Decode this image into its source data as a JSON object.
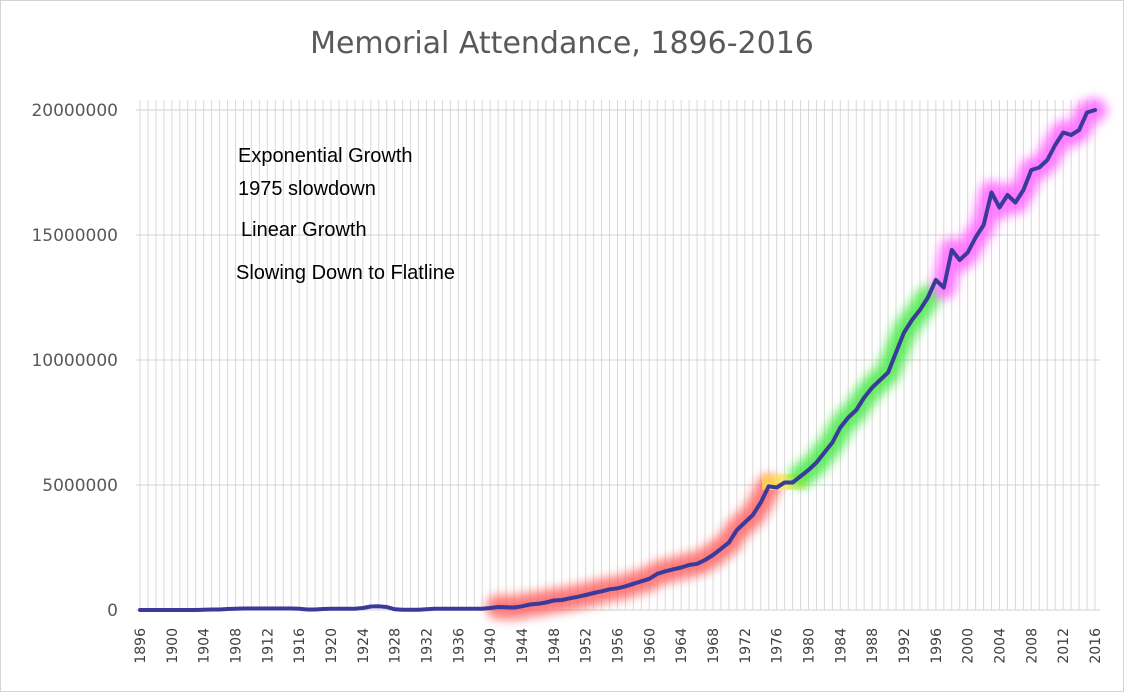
{
  "chart_data": {
    "type": "line",
    "title": "Memorial Attendance, 1896-2016",
    "xlabel": "",
    "ylabel": "",
    "xlim": [
      1896,
      2016
    ],
    "ylim": [
      0,
      20000000
    ],
    "y_ticks": [
      "0",
      "5000000",
      "10000000",
      "15000000",
      "20000000"
    ],
    "x_tick_labels": [
      "1896",
      "1900",
      "1904",
      "1908",
      "1912",
      "1916",
      "1920",
      "1924",
      "1928",
      "1932",
      "1936",
      "1940",
      "1944",
      "1948",
      "1952",
      "1956",
      "1960",
      "1964",
      "1968",
      "1972",
      "1976",
      "1980",
      "1984",
      "1988",
      "1992",
      "1996",
      "2000",
      "2004",
      "2008",
      "2012",
      "2016"
    ],
    "grid": true,
    "line_color": "#3a3a9a",
    "series": [
      {
        "x": [
          1896,
          1897,
          1898,
          1899,
          1900,
          1901,
          1902,
          1903,
          1904,
          1905,
          1906,
          1907,
          1908,
          1909,
          1910,
          1911,
          1912,
          1913,
          1914,
          1915,
          1916,
          1917,
          1918,
          1919,
          1920,
          1921,
          1922,
          1923,
          1924,
          1925,
          1926,
          1927,
          1928,
          1929,
          1930,
          1931,
          1932,
          1933,
          1934,
          1935,
          1936,
          1937,
          1938,
          1939,
          1940,
          1941,
          1942,
          1943,
          1944,
          1945,
          1946,
          1947,
          1948,
          1949,
          1950,
          1951,
          1952,
          1953,
          1954,
          1955,
          1956,
          1957,
          1958,
          1959,
          1960,
          1961,
          1962,
          1963,
          1964,
          1965,
          1966,
          1967,
          1968,
          1969,
          1970,
          1971,
          1972,
          1973,
          1974,
          1975,
          1976,
          1977,
          1978,
          1979,
          1980,
          1981,
          1982,
          1983,
          1984,
          1985,
          1986,
          1987,
          1988,
          1989,
          1990,
          1991,
          1992,
          1993,
          1994,
          1995,
          1996,
          1997,
          1998,
          1999,
          2000,
          2001,
          2002,
          2003,
          2004,
          2005,
          2006,
          2007,
          2008,
          2009,
          2010,
          2011,
          2012,
          2013,
          2014,
          2015,
          2016
        ],
        "y": [
          0,
          0,
          0,
          0,
          0,
          0,
          0,
          0,
          10000,
          20000,
          20000,
          40000,
          50000,
          60000,
          60000,
          60000,
          60000,
          60000,
          60000,
          60000,
          50000,
          20000,
          20000,
          40000,
          50000,
          50000,
          50000,
          50000,
          80000,
          140000,
          150000,
          120000,
          30000,
          10000,
          10000,
          10000,
          30000,
          50000,
          50000,
          50000,
          50000,
          50000,
          50000,
          50000,
          80000,
          120000,
          110000,
          100000,
          150000,
          220000,
          250000,
          300000,
          380000,
          400000,
          470000,
          530000,
          600000,
          680000,
          750000,
          830000,
          870000,
          950000,
          1050000,
          1150000,
          1250000,
          1450000,
          1550000,
          1630000,
          1700000,
          1800000,
          1850000,
          2000000,
          2200000,
          2450000,
          2700000,
          3200000,
          3500000,
          3800000,
          4300000,
          4950000,
          4900000,
          5100000,
          5100000,
          5350000,
          5600000,
          5900000,
          6300000,
          6700000,
          7300000,
          7700000,
          8000000,
          8500000,
          8900000,
          9200000,
          9500000,
          10300000,
          11100000,
          11600000,
          12000000,
          12500000,
          13200000,
          12900000,
          14400000,
          14000000,
          14300000,
          14900000,
          15400000,
          16700000,
          16100000,
          16600000,
          16300000,
          16800000,
          17600000,
          17700000,
          18000000,
          18600000,
          19100000,
          19000000,
          19200000,
          19900000,
          20000000
        ]
      }
    ],
    "highlight_segments": [
      {
        "label": "Exponential Growth",
        "color": "#ff5a5a",
        "from": 1941,
        "to": 1975
      },
      {
        "label": "1975 slowdown",
        "color": "#ffe94a",
        "from": 1975,
        "to": 1979
      },
      {
        "label": "Linear Growth",
        "color": "#3ee83e",
        "from": 1979,
        "to": 1995
      },
      {
        "label": "Slowing Down to Flatline",
        "color": "#ff5cff",
        "from": 1997,
        "to": 2016
      }
    ],
    "legend": [
      {
        "label": "Exponential Growth",
        "color": "#ff5a5a"
      },
      {
        "label": "1975 slowdown",
        "color": "#ffe94a"
      },
      {
        "label": "Linear Growth",
        "color": "#3ee83e"
      },
      {
        "label": "Slowing Down to Flatline",
        "color": "#ff5cff"
      }
    ],
    "legend_position": "top-left"
  }
}
